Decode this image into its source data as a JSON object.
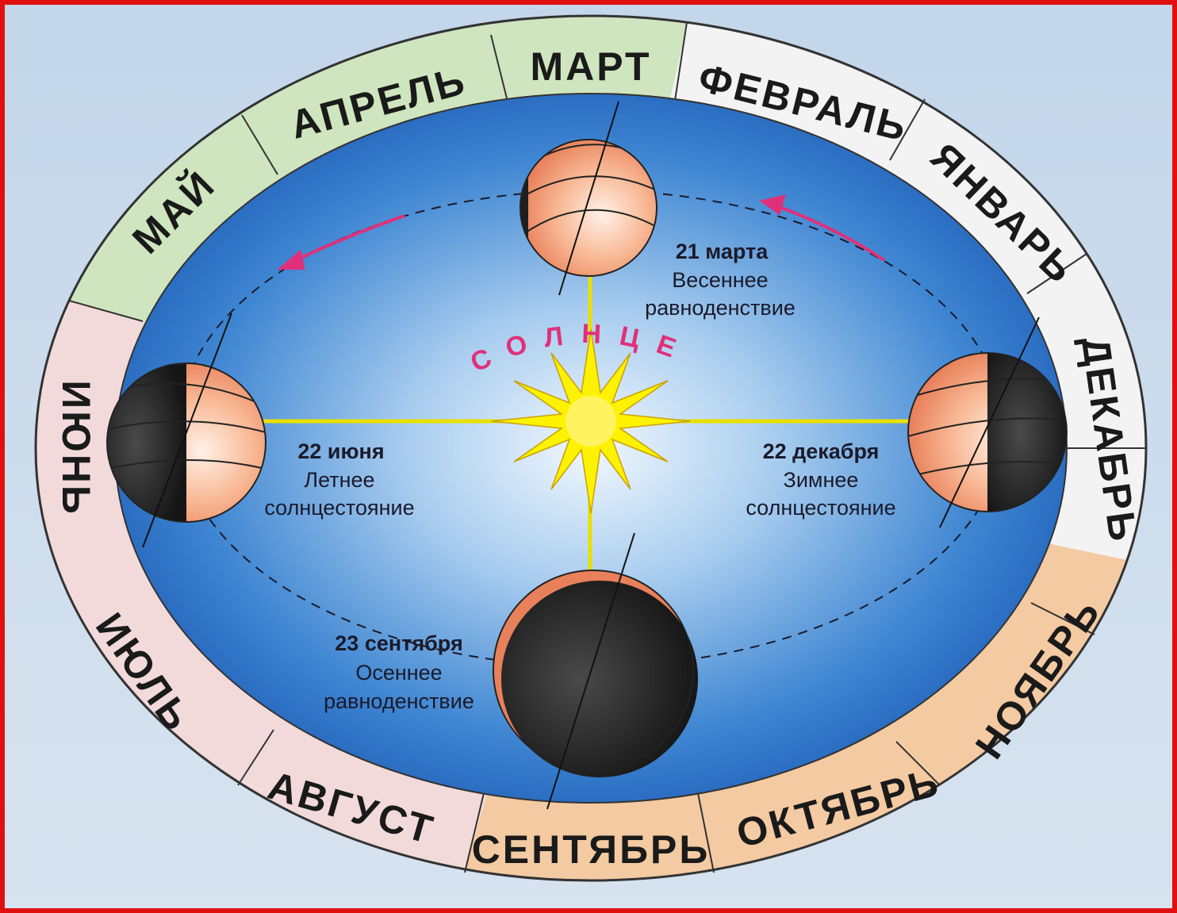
{
  "months": [
    "МАРТ",
    "ФЕВРАЛЬ",
    "ЯНВАРЬ",
    "ДЕКАБРЬ",
    "НОЯБРЬ",
    "ОКТЯБРЬ",
    "СЕНТЯБРЬ",
    "АВГУСТ",
    "ИЮЛЬ",
    "ИЮНЬ",
    "МАЙ",
    "АПРЕЛЬ"
  ],
  "sun": "СОЛНЦЕ",
  "events": [
    {
      "date": "21 марта",
      "line1": "Весеннее",
      "line2": "равноденствие"
    },
    {
      "date": "22 июня",
      "line1": "Летнее",
      "line2": "солнцестояние"
    },
    {
      "date": "22 декабря",
      "line1": "Зимнее",
      "line2": "солнцестояние"
    },
    {
      "date": "23 сентября",
      "line1": "Осеннее",
      "line2": "равноденствие"
    }
  ]
}
